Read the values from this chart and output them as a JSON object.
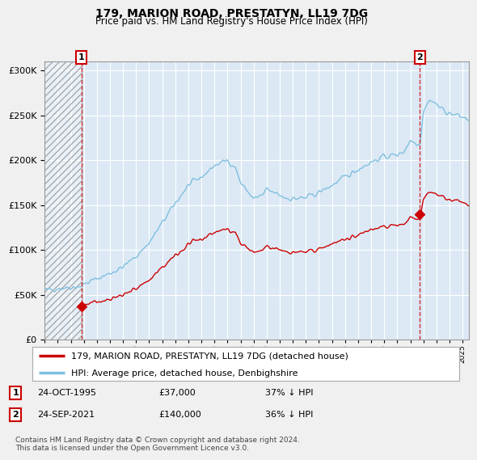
{
  "title": "179, MARION ROAD, PRESTATYN, LL19 7DG",
  "subtitle": "Price paid vs. HM Land Registry's House Price Index (HPI)",
  "legend_entry1": "179, MARION ROAD, PRESTATYN, LL19 7DG (detached house)",
  "legend_entry2": "HPI: Average price, detached house, Denbighshire",
  "marker1_label": "1",
  "marker2_label": "2",
  "point1_date": "24-OCT-1995",
  "point1_price": 37000,
  "point1_info": "37% ↓ HPI",
  "point2_date": "24-SEP-2021",
  "point2_price": 140000,
  "point2_info": "36% ↓ HPI",
  "footer": "Contains HM Land Registry data © Crown copyright and database right 2024.\nThis data is licensed under the Open Government Licence v3.0.",
  "hpi_color": "#7fbfdf",
  "price_color": "#cc0000",
  "background_color": "#f0f0f0",
  "plot_bg_color": "#dce9f5",
  "grid_color": "#ffffff",
  "ylim": [
    0,
    310000
  ],
  "yticks": [
    0,
    50000,
    100000,
    150000,
    200000,
    250000,
    300000
  ],
  "point1_x": 1995.82,
  "point1_y": 37000,
  "point2_x": 2021.73,
  "point2_y": 140000,
  "marker1_vline_x": 1995.82,
  "marker2_vline_x": 2021.73,
  "xmin": 1993.0,
  "xmax": 2025.5
}
